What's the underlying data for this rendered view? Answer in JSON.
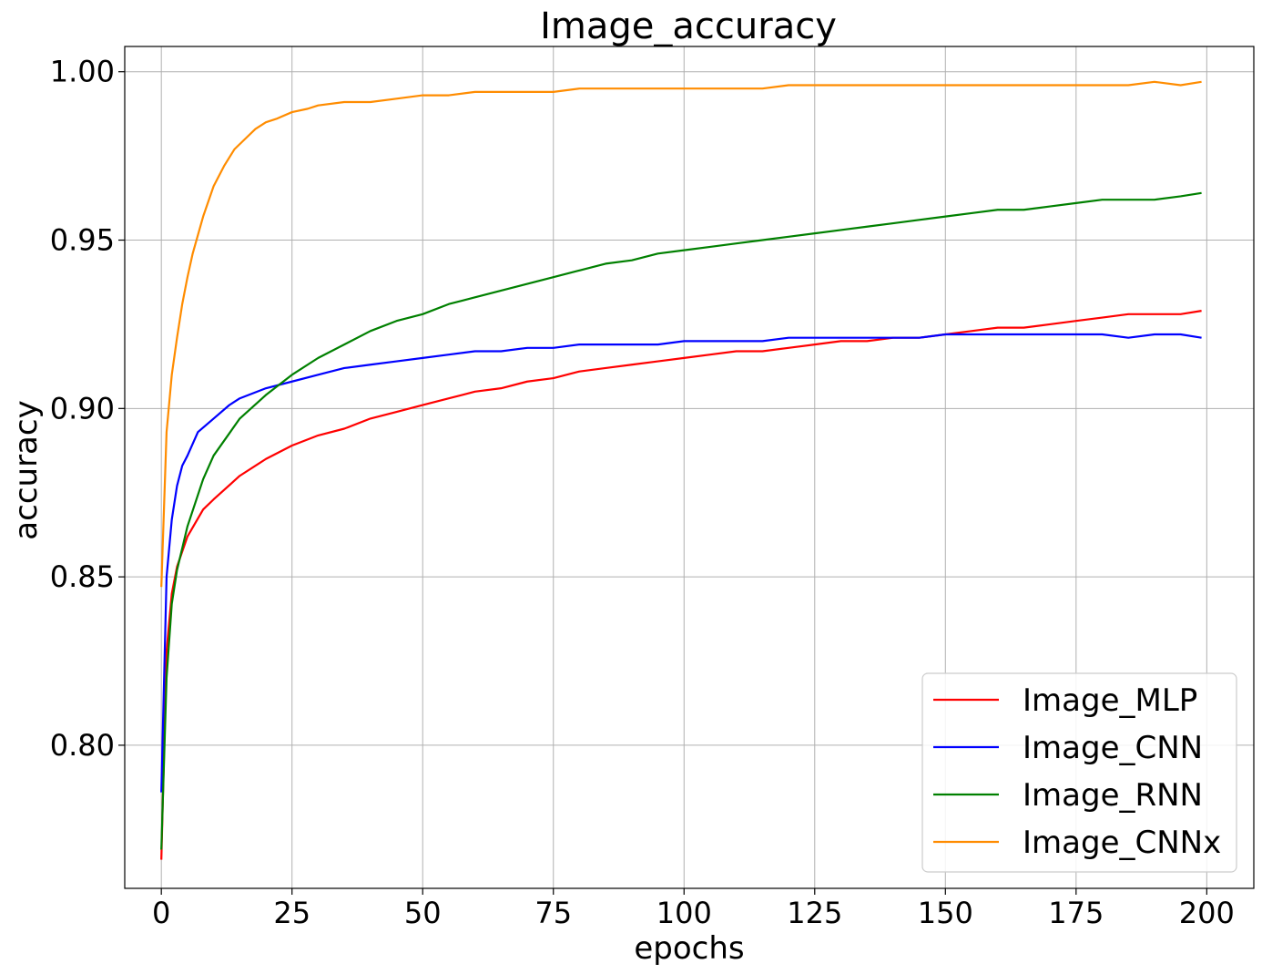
{
  "chart_data": {
    "type": "line",
    "title": "Image_accuracy",
    "xlabel": "epochs",
    "ylabel": "accuracy",
    "xlim": [
      -7,
      209
    ],
    "ylim": [
      0.7575,
      1.0075
    ],
    "xticks": [
      0,
      25,
      50,
      75,
      100,
      125,
      150,
      175,
      200
    ],
    "xtick_labels": [
      "0",
      "25",
      "50",
      "75",
      "100",
      "125",
      "150",
      "175",
      "200"
    ],
    "yticks": [
      0.8,
      0.85,
      0.9,
      0.95,
      1.0
    ],
    "ytick_labels": [
      "0.80",
      "0.85",
      "0.90",
      "0.95",
      "1.00"
    ],
    "grid": true,
    "legend_position": "lower-right",
    "series": [
      {
        "name": "Image_MLP",
        "color": "#ff0000",
        "x": [
          0,
          1,
          2,
          3,
          5,
          8,
          10,
          15,
          20,
          25,
          30,
          35,
          40,
          45,
          50,
          55,
          60,
          65,
          70,
          75,
          80,
          85,
          90,
          95,
          100,
          105,
          110,
          115,
          120,
          125,
          130,
          135,
          140,
          145,
          150,
          155,
          160,
          165,
          170,
          175,
          180,
          185,
          190,
          195,
          199
        ],
        "values": [
          0.766,
          0.828,
          0.845,
          0.853,
          0.862,
          0.87,
          0.873,
          0.88,
          0.885,
          0.889,
          0.892,
          0.894,
          0.897,
          0.899,
          0.901,
          0.903,
          0.905,
          0.906,
          0.908,
          0.909,
          0.911,
          0.912,
          0.913,
          0.914,
          0.915,
          0.916,
          0.917,
          0.917,
          0.918,
          0.919,
          0.92,
          0.92,
          0.921,
          0.921,
          0.922,
          0.923,
          0.924,
          0.924,
          0.925,
          0.926,
          0.927,
          0.928,
          0.928,
          0.928,
          0.929
        ]
      },
      {
        "name": "Image_CNN",
        "color": "#0000ff",
        "x": [
          0,
          1,
          2,
          3,
          4,
          5,
          7,
          10,
          13,
          15,
          20,
          25,
          30,
          35,
          40,
          45,
          50,
          55,
          60,
          65,
          70,
          75,
          80,
          85,
          90,
          95,
          100,
          105,
          110,
          115,
          120,
          125,
          130,
          135,
          140,
          145,
          150,
          155,
          160,
          165,
          170,
          175,
          180,
          185,
          190,
          195,
          199
        ],
        "values": [
          0.786,
          0.85,
          0.867,
          0.877,
          0.883,
          0.886,
          0.893,
          0.897,
          0.901,
          0.903,
          0.906,
          0.908,
          0.91,
          0.912,
          0.913,
          0.914,
          0.915,
          0.916,
          0.917,
          0.917,
          0.918,
          0.918,
          0.919,
          0.919,
          0.919,
          0.919,
          0.92,
          0.92,
          0.92,
          0.92,
          0.921,
          0.921,
          0.921,
          0.921,
          0.921,
          0.921,
          0.922,
          0.922,
          0.922,
          0.922,
          0.922,
          0.922,
          0.922,
          0.921,
          0.922,
          0.922,
          0.921
        ]
      },
      {
        "name": "Image_RNN",
        "color": "#008000",
        "x": [
          0,
          1,
          2,
          3,
          5,
          8,
          10,
          15,
          20,
          25,
          30,
          35,
          40,
          45,
          50,
          55,
          60,
          65,
          70,
          75,
          80,
          85,
          90,
          95,
          100,
          105,
          110,
          115,
          120,
          125,
          130,
          135,
          140,
          145,
          150,
          155,
          160,
          165,
          170,
          175,
          180,
          185,
          190,
          195,
          199
        ],
        "values": [
          0.769,
          0.82,
          0.842,
          0.852,
          0.865,
          0.879,
          0.886,
          0.897,
          0.904,
          0.91,
          0.915,
          0.919,
          0.923,
          0.926,
          0.928,
          0.931,
          0.933,
          0.935,
          0.937,
          0.939,
          0.941,
          0.943,
          0.944,
          0.946,
          0.947,
          0.948,
          0.949,
          0.95,
          0.951,
          0.952,
          0.953,
          0.954,
          0.955,
          0.956,
          0.957,
          0.958,
          0.959,
          0.959,
          0.96,
          0.961,
          0.962,
          0.962,
          0.962,
          0.963,
          0.964
        ]
      },
      {
        "name": "Image_CNNx",
        "color": "#ff8c00",
        "x": [
          0,
          1,
          2,
          3,
          4,
          5,
          6,
          8,
          10,
          12,
          14,
          16,
          18,
          20,
          22,
          25,
          28,
          30,
          35,
          40,
          45,
          50,
          55,
          60,
          65,
          70,
          75,
          80,
          85,
          90,
          95,
          100,
          105,
          110,
          115,
          120,
          125,
          130,
          135,
          140,
          145,
          150,
          155,
          160,
          165,
          170,
          175,
          180,
          185,
          190,
          195,
          199
        ],
        "values": [
          0.847,
          0.893,
          0.91,
          0.921,
          0.931,
          0.939,
          0.946,
          0.957,
          0.966,
          0.972,
          0.977,
          0.98,
          0.983,
          0.985,
          0.986,
          0.988,
          0.989,
          0.99,
          0.991,
          0.991,
          0.992,
          0.993,
          0.993,
          0.994,
          0.994,
          0.994,
          0.994,
          0.995,
          0.995,
          0.995,
          0.995,
          0.995,
          0.995,
          0.995,
          0.995,
          0.996,
          0.996,
          0.996,
          0.996,
          0.996,
          0.996,
          0.996,
          0.996,
          0.996,
          0.996,
          0.996,
          0.996,
          0.996,
          0.996,
          0.997,
          0.996,
          0.997
        ]
      }
    ]
  }
}
